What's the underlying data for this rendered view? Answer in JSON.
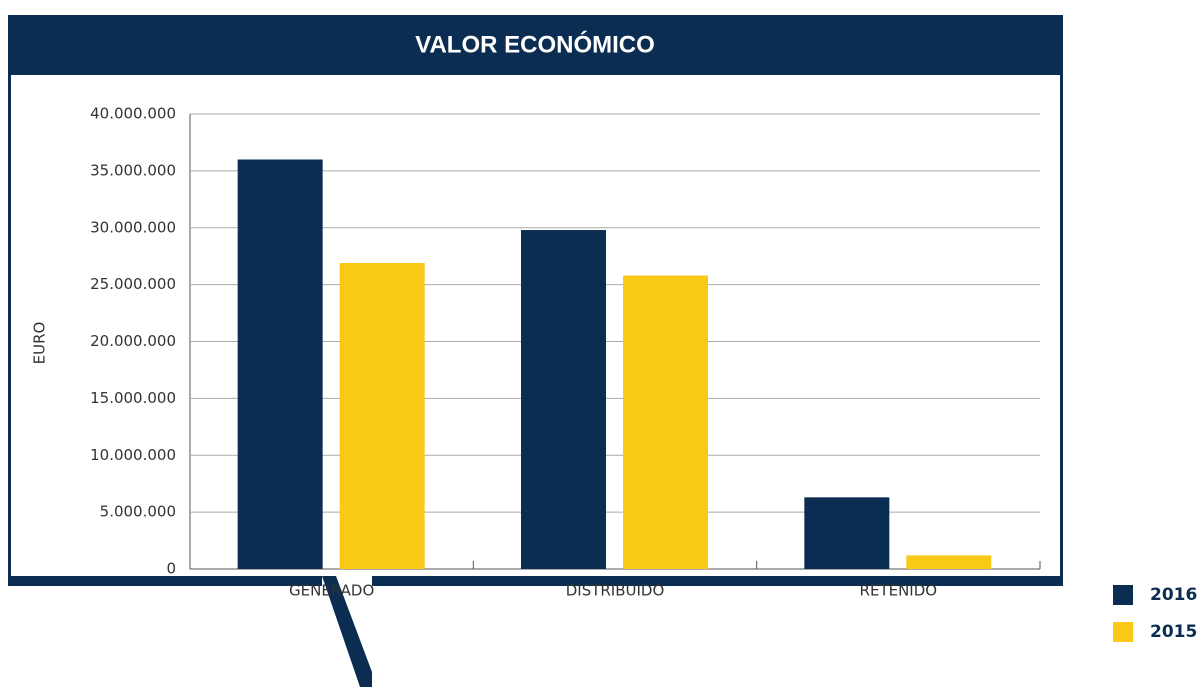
{
  "chart_data": {
    "type": "bar",
    "title": "VALOR ECONÓMICO",
    "y_label": "EURO",
    "categories": [
      "GENERADO",
      "DISTRIBUIDO",
      "RETENIDO"
    ],
    "series": [
      {
        "name": "2016",
        "color": "#0b2d52",
        "values": [
          36000000,
          29800000,
          6300000
        ]
      },
      {
        "name": "2015",
        "color": "#f9c916",
        "values": [
          26900000,
          25800000,
          1200000
        ]
      }
    ],
    "ylim": [
      0,
      40000000
    ],
    "yticks": [
      0,
      {
        "value": 5000000,
        "label": "5.000.000"
      },
      {
        "value": 10000000,
        "label": "10.000.000"
      },
      {
        "value": 15000000,
        "label": "15.000.000"
      },
      {
        "value": 20000000,
        "label": "20.000.000"
      },
      {
        "value": 25000000,
        "label": "25.000.000"
      },
      {
        "value": 30000000,
        "label": "30.000.000"
      },
      {
        "value": 35000000,
        "label": "35.000.000"
      },
      {
        "value": 40000000,
        "label": "40.000.000"
      }
    ],
    "grid": true,
    "legend": "lower right"
  }
}
